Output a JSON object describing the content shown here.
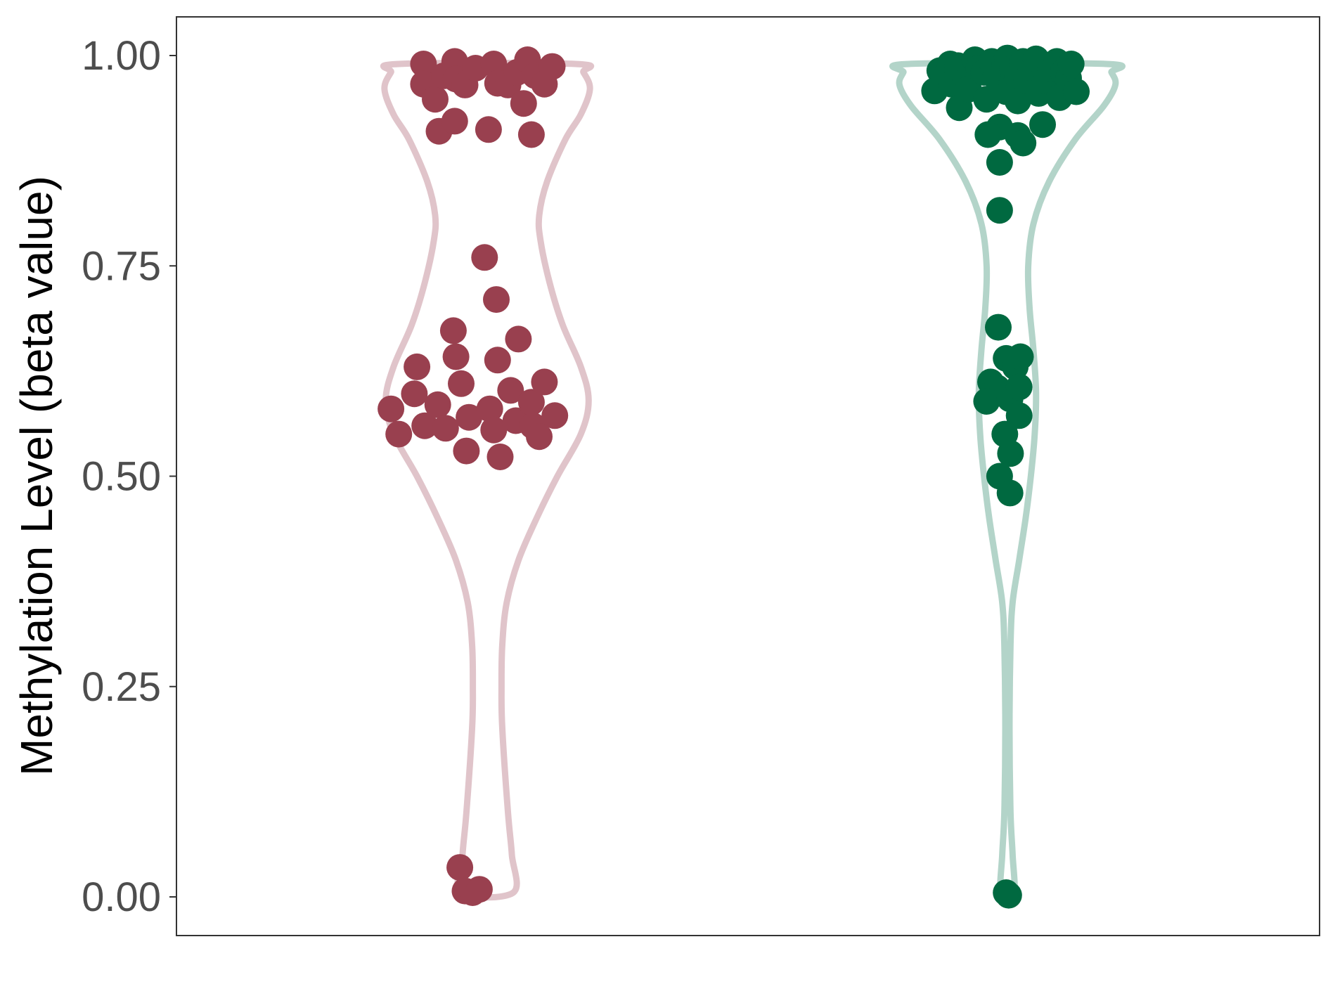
{
  "chart_data": {
    "type": "violin",
    "title": "",
    "xlabel": "",
    "ylabel": "Methylation Level (beta value)",
    "ylim": [
      -0.035,
      0.21
    ],
    "yticks": [
      0.0,
      0.25,
      0.5,
      0.75,
      1.0
    ],
    "ytick_labels": [
      "0.00",
      "0.25",
      "0.50",
      "0.75",
      "1.00"
    ],
    "grid": false,
    "legend": "none",
    "series": [
      {
        "violin_color": "#e0c4ca",
        "point_color": "#99404f",
        "violin_range": [
          0.005,
          0.99
        ],
        "violin_profile": [
          [
            0.005,
            0.1
          ],
          [
            0.05,
            0.095
          ],
          [
            0.1,
            0.08
          ],
          [
            0.2,
            0.058
          ],
          [
            0.25,
            0.055
          ],
          [
            0.3,
            0.058
          ],
          [
            0.35,
            0.075
          ],
          [
            0.4,
            0.12
          ],
          [
            0.45,
            0.19
          ],
          [
            0.5,
            0.27
          ],
          [
            0.55,
            0.36
          ],
          [
            0.59,
            0.39
          ],
          [
            0.63,
            0.36
          ],
          [
            0.68,
            0.29
          ],
          [
            0.73,
            0.24
          ],
          [
            0.78,
            0.205
          ],
          [
            0.81,
            0.2
          ],
          [
            0.85,
            0.23
          ],
          [
            0.9,
            0.3
          ],
          [
            0.93,
            0.36
          ],
          [
            0.96,
            0.395
          ],
          [
            0.98,
            0.37
          ],
          [
            0.99,
            0.34
          ]
        ],
        "points": [
          [
            -0.105,
            0.035
          ],
          [
            -0.085,
            0.007
          ],
          [
            -0.056,
            0.005
          ],
          [
            -0.03,
            0.009
          ],
          [
            -0.37,
            0.58
          ],
          [
            -0.34,
            0.55
          ],
          [
            -0.28,
            0.598
          ],
          [
            -0.27,
            0.63
          ],
          [
            -0.24,
            0.56
          ],
          [
            -0.19,
            0.585
          ],
          [
            -0.16,
            0.557
          ],
          [
            -0.13,
            0.673
          ],
          [
            -0.12,
            0.642
          ],
          [
            -0.1,
            0.61
          ],
          [
            -0.08,
            0.53
          ],
          [
            -0.07,
            0.57
          ],
          [
            -0.01,
            0.76
          ],
          [
            0.01,
            0.58
          ],
          [
            0.025,
            0.555
          ],
          [
            0.035,
            0.71
          ],
          [
            0.04,
            0.638
          ],
          [
            0.05,
            0.523
          ],
          [
            0.09,
            0.602
          ],
          [
            0.11,
            0.566
          ],
          [
            0.12,
            0.663
          ],
          [
            0.17,
            0.588
          ],
          [
            0.175,
            0.56
          ],
          [
            0.2,
            0.547
          ],
          [
            0.22,
            0.612
          ],
          [
            0.26,
            0.572
          ],
          [
            -0.245,
            0.99
          ],
          [
            -0.245,
            0.966
          ],
          [
            -0.2,
            0.948
          ],
          [
            -0.185,
            0.91
          ],
          [
            -0.165,
            0.976
          ],
          [
            -0.125,
            0.993
          ],
          [
            -0.12,
            0.972
          ],
          [
            -0.125,
            0.922
          ],
          [
            -0.085,
            0.965
          ],
          [
            -0.045,
            0.985
          ],
          [
            0.005,
            0.912
          ],
          [
            0.025,
            0.99
          ],
          [
            0.04,
            0.967
          ],
          [
            0.08,
            0.965
          ],
          [
            0.115,
            0.98
          ],
          [
            0.14,
            0.943
          ],
          [
            0.155,
            0.995
          ],
          [
            0.17,
            0.906
          ],
          [
            0.185,
            0.976
          ],
          [
            0.22,
            0.966
          ],
          [
            0.25,
            0.987
          ]
        ]
      },
      {
        "violin_color": "#b3d4c9",
        "point_color": "#006940",
        "violin_range": [
          0.005,
          0.99
        ],
        "violin_profile": [
          [
            0.005,
            0.025
          ],
          [
            0.05,
            0.02
          ],
          [
            0.1,
            0.012
          ],
          [
            0.2,
            0.008
          ],
          [
            0.3,
            0.012
          ],
          [
            0.35,
            0.02
          ],
          [
            0.4,
            0.045
          ],
          [
            0.45,
            0.07
          ],
          [
            0.5,
            0.09
          ],
          [
            0.55,
            0.105
          ],
          [
            0.6,
            0.11
          ],
          [
            0.65,
            0.1
          ],
          [
            0.7,
            0.085
          ],
          [
            0.75,
            0.08
          ],
          [
            0.8,
            0.1
          ],
          [
            0.85,
            0.16
          ],
          [
            0.9,
            0.26
          ],
          [
            0.94,
            0.37
          ],
          [
            0.965,
            0.415
          ],
          [
            0.98,
            0.4
          ],
          [
            0.99,
            0.38
          ]
        ],
        "points": [
          [
            -0.005,
            0.005
          ],
          [
            0.005,
            0.002
          ],
          [
            -0.03,
            0.816
          ],
          [
            -0.03,
            0.873
          ],
          [
            -0.03,
            0.915
          ],
          [
            -0.075,
            0.906
          ],
          [
            0.04,
            0.905
          ],
          [
            0.06,
            0.896
          ],
          [
            0.135,
            0.918
          ],
          [
            -0.035,
            0.677
          ],
          [
            -0.005,
            0.64
          ],
          [
            0.03,
            0.63
          ],
          [
            0.05,
            0.642
          ],
          [
            -0.065,
            0.612
          ],
          [
            -0.04,
            0.605
          ],
          [
            -0.08,
            0.589
          ],
          [
            0.01,
            0.592
          ],
          [
            0.045,
            0.606
          ],
          [
            0.045,
            0.572
          ],
          [
            -0.01,
            0.55
          ],
          [
            0.012,
            0.527
          ],
          [
            -0.03,
            0.5
          ],
          [
            0.01,
            0.48
          ],
          [
            -0.28,
            0.958
          ],
          [
            -0.26,
            0.982
          ],
          [
            -0.25,
            0.973
          ],
          [
            -0.22,
            0.99
          ],
          [
            -0.215,
            0.966
          ],
          [
            -0.19,
            0.988
          ],
          [
            -0.185,
            0.938
          ],
          [
            -0.16,
            0.97
          ],
          [
            -0.15,
            0.96
          ],
          [
            -0.125,
            0.995
          ],
          [
            -0.11,
            0.985
          ],
          [
            -0.09,
            0.98
          ],
          [
            -0.08,
            0.948
          ],
          [
            -0.06,
            0.993
          ],
          [
            -0.045,
            0.975
          ],
          [
            -0.01,
            0.99
          ],
          [
            0.0,
            0.997
          ],
          [
            -0.005,
            0.957
          ],
          [
            0.015,
            0.96
          ],
          [
            0.02,
            0.985
          ],
          [
            0.04,
            0.975
          ],
          [
            0.04,
            0.946
          ],
          [
            0.06,
            0.993
          ],
          [
            0.075,
            0.97
          ],
          [
            0.09,
            0.986
          ],
          [
            0.11,
            0.996
          ],
          [
            0.12,
            0.955
          ],
          [
            0.15,
            0.97
          ],
          [
            0.165,
            0.985
          ],
          [
            0.19,
            0.993
          ],
          [
            0.2,
            0.95
          ],
          [
            0.215,
            0.98
          ],
          [
            0.235,
            0.973
          ],
          [
            0.245,
            0.99
          ],
          [
            0.265,
            0.957
          ]
        ]
      }
    ]
  }
}
